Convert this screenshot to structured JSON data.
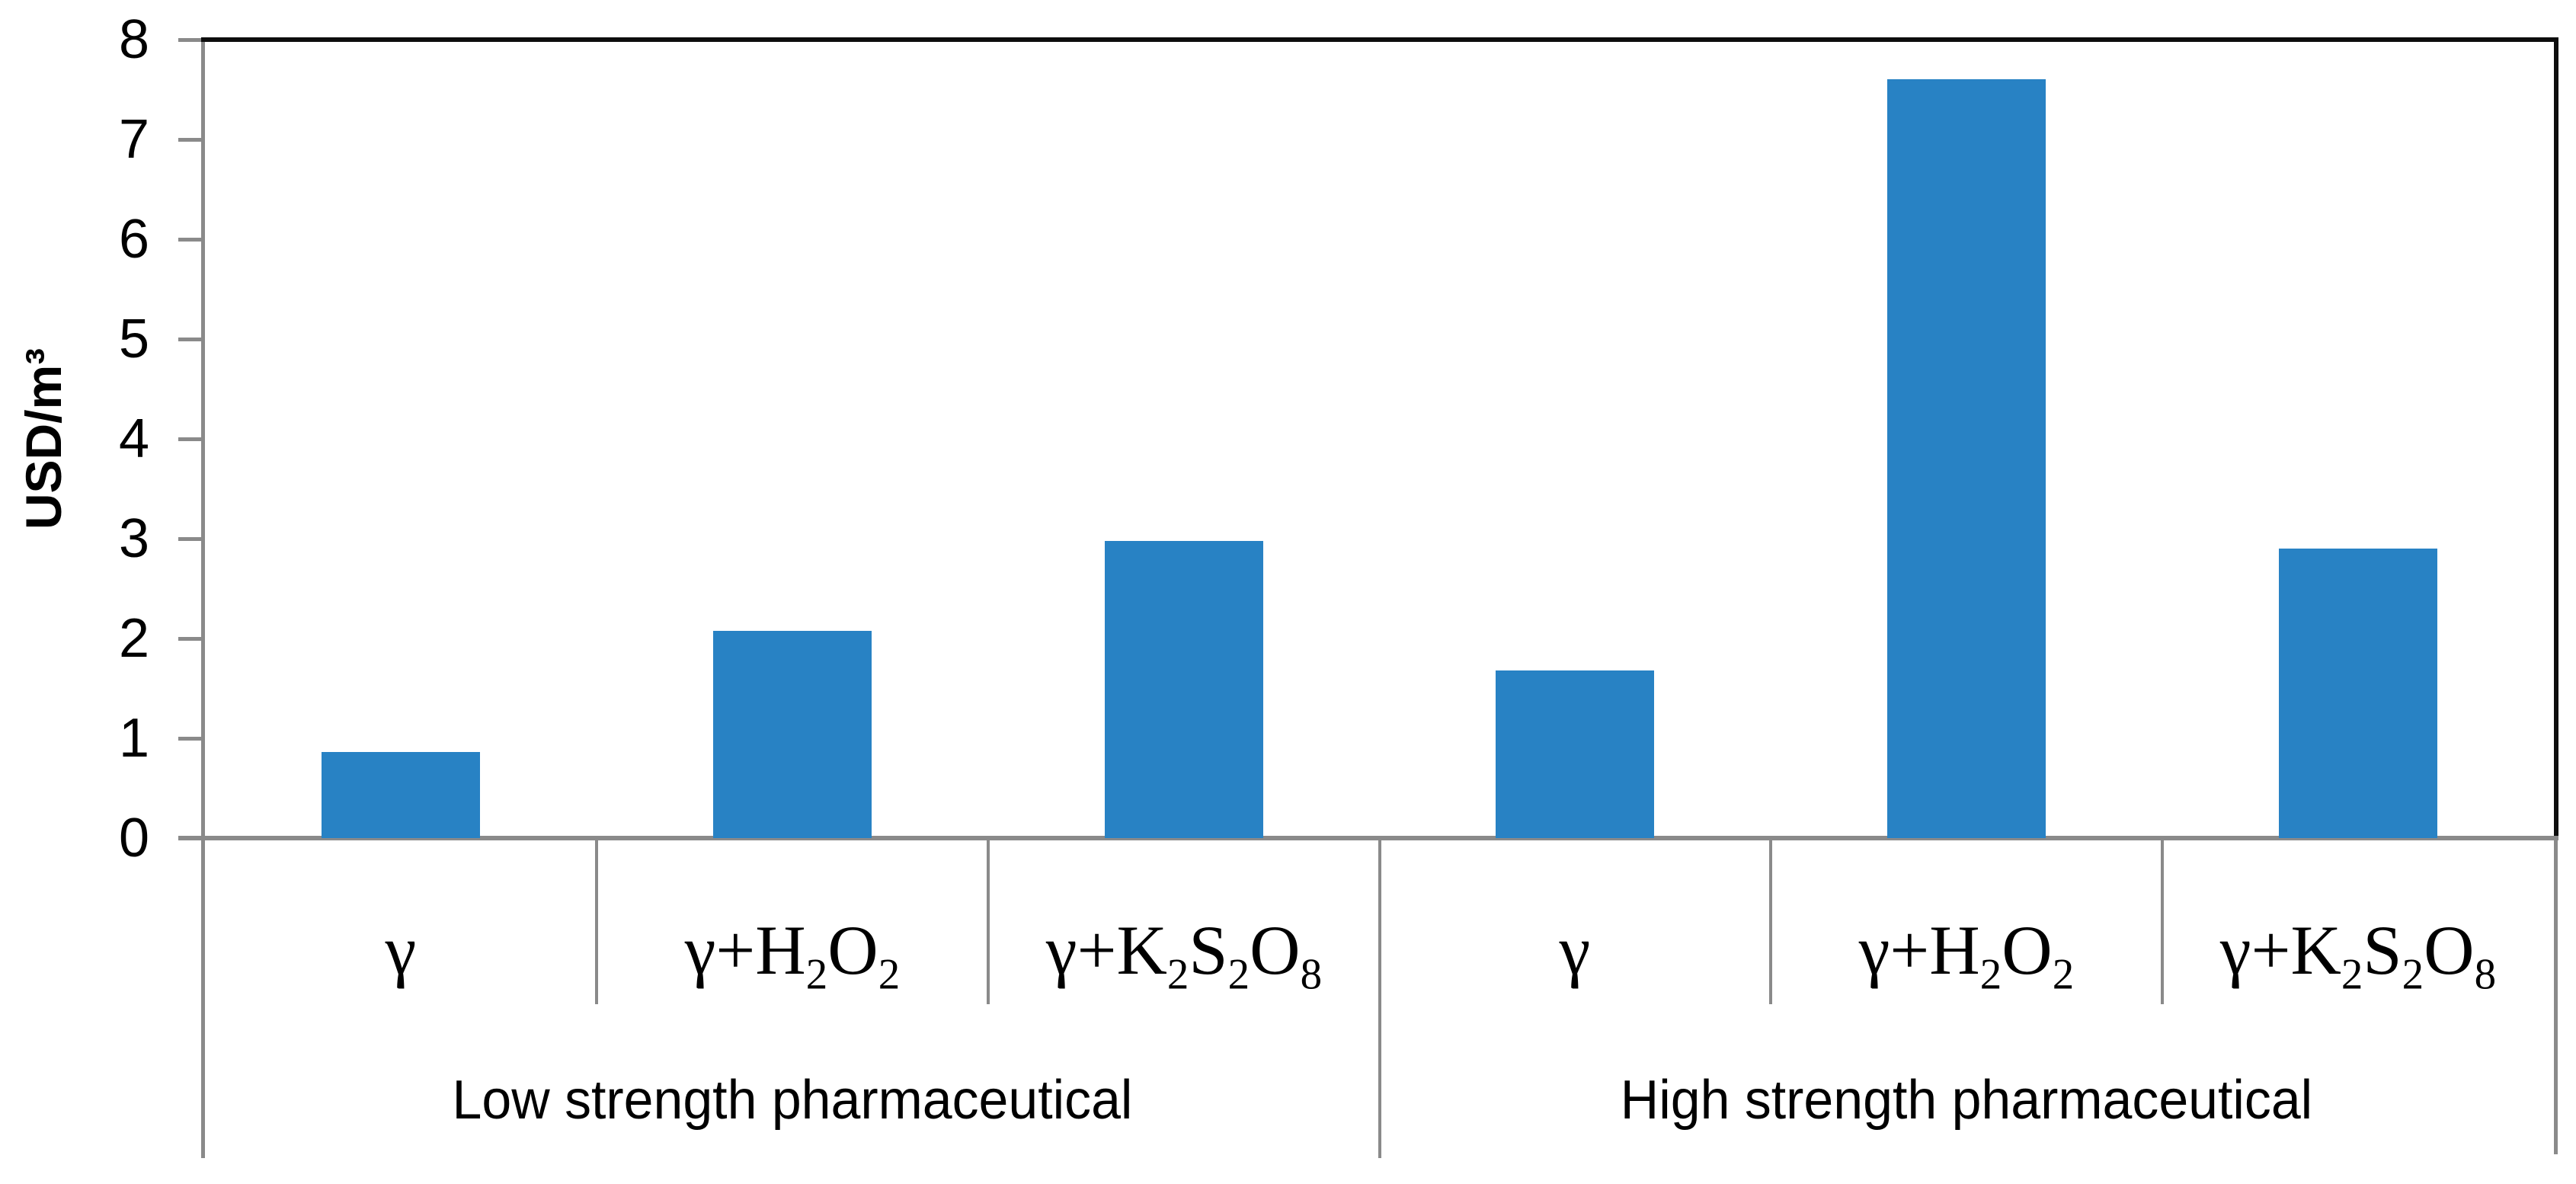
{
  "chart_data": {
    "type": "bar",
    "title": "",
    "xlabel": "",
    "ylabel": "USD/m³",
    "ylim": [
      0,
      8
    ],
    "ytick_interval": 1,
    "y_tick_labels": [
      "0",
      "1",
      "2",
      "3",
      "4",
      "5",
      "6",
      "7",
      "8"
    ],
    "grid": false,
    "legend_position": "none",
    "bar_color": "#2882C4",
    "axis_color": "#8a8a8a",
    "border_color": "#0d0d0d",
    "categories": [
      "γ",
      "γ+H₂O₂",
      "γ+K₂S₂O₈",
      "γ",
      "γ+H₂O₂",
      "γ+K₂S₂O₈"
    ],
    "values": [
      0.86,
      2.08,
      2.98,
      1.68,
      7.6,
      2.9
    ],
    "group_labels": [
      "Low strength pharmaceutical",
      "High strength pharmaceutical"
    ],
    "group_spans": [
      3,
      3
    ]
  }
}
